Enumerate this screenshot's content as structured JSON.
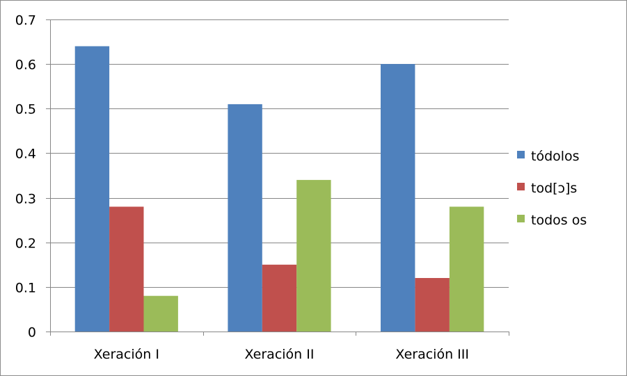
{
  "chart_data": {
    "type": "bar",
    "title": "",
    "xlabel": "",
    "ylabel": "",
    "categories": [
      "Xeración I",
      "Xeración II",
      "Xeración III"
    ],
    "series": [
      {
        "name": "tódolos",
        "color": "#4f81bd",
        "values": [
          0.64,
          0.51,
          0.6
        ]
      },
      {
        "name": "tod[ɔ]s",
        "color": "#c0504d",
        "values": [
          0.28,
          0.15,
          0.12
        ]
      },
      {
        "name": "todos os",
        "color": "#9bbb59",
        "values": [
          0.08,
          0.34,
          0.28
        ]
      }
    ],
    "ylim": [
      0,
      0.7
    ],
    "yticks": [
      "0",
      "0.1",
      "0.2",
      "0.3",
      "0.4",
      "0.5",
      "0.6",
      "0.7"
    ],
    "grid": true,
    "legend_position": "right"
  }
}
